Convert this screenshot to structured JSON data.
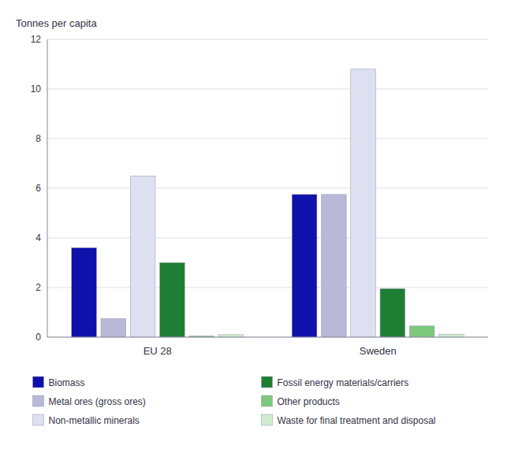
{
  "chart_data": {
    "type": "bar",
    "y_label": "Tonnes per capita",
    "categories": [
      "EU 28",
      "Sweden"
    ],
    "series": [
      {
        "name": "Biomass",
        "color": "#1010AA",
        "values": [
          3.6,
          5.75
        ]
      },
      {
        "name": "Metal ores (gross ores)",
        "color": "#B8B8D8",
        "values": [
          0.75,
          5.75
        ]
      },
      {
        "name": "Non-metallic minerals",
        "color": "#DCE0F0",
        "values": [
          6.5,
          10.8
        ]
      },
      {
        "name": "Fossil energy materials/carriers",
        "color": "#1E7E34",
        "values": [
          3.0,
          1.95
        ]
      },
      {
        "name": "Other products",
        "color": "#7DC87D",
        "values": [
          0.05,
          0.45
        ]
      },
      {
        "name": "Waste for final treatment and disposal",
        "color": "#D0EBD0",
        "values": [
          0.1,
          0.12
        ]
      }
    ],
    "ylim": [
      0,
      12
    ],
    "yticks": [
      0,
      2,
      4,
      6,
      8,
      10,
      12
    ],
    "grid": true,
    "legend": "bottom"
  }
}
